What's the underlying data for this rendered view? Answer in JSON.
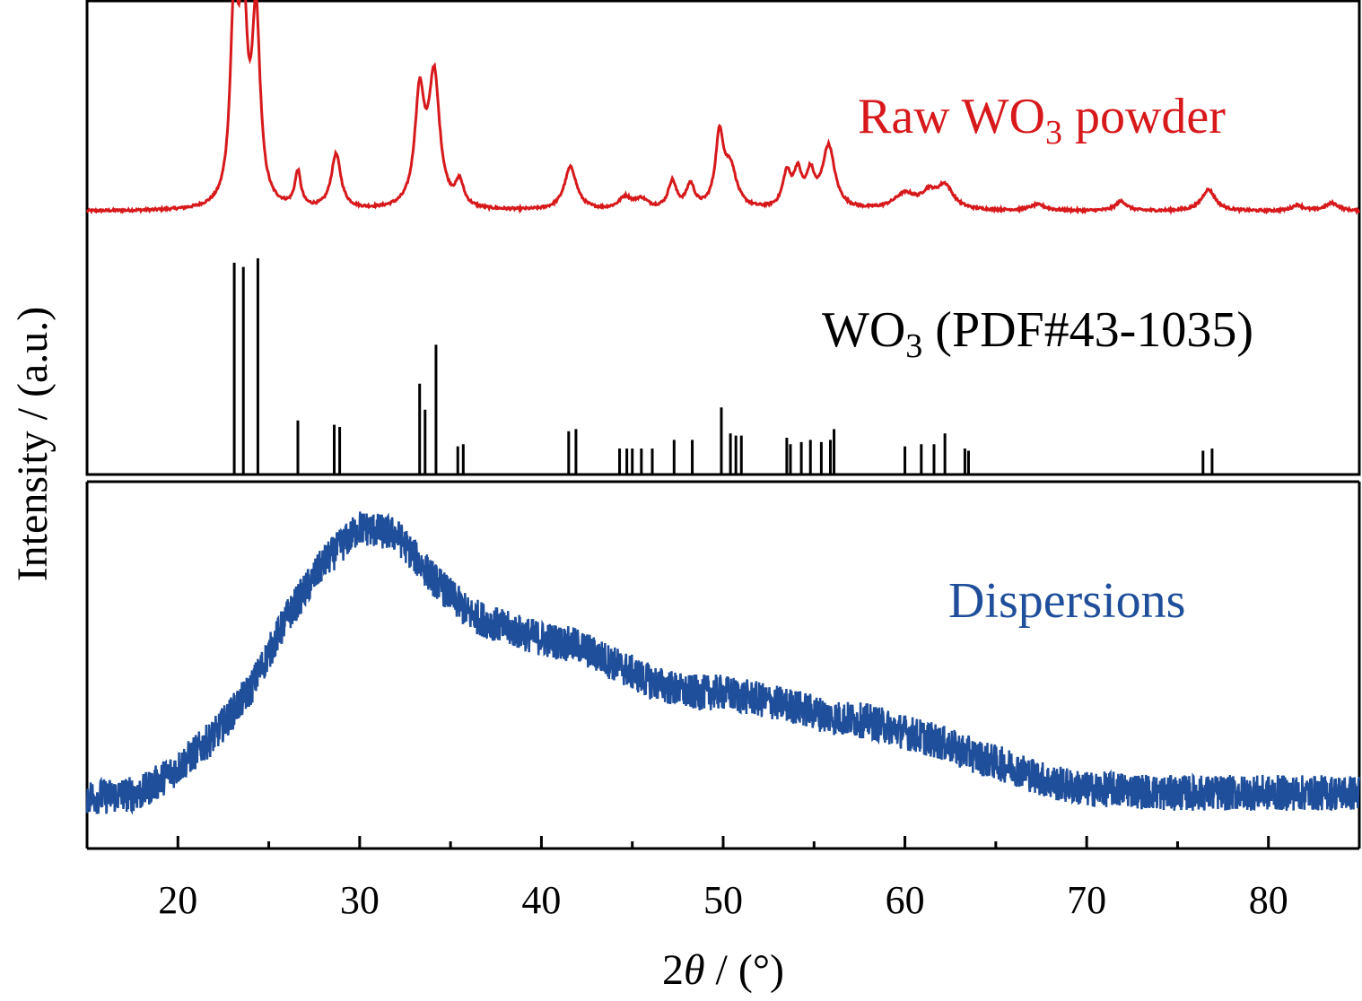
{
  "chart_data": {
    "type": "line",
    "xlabel": "2θ / (°)",
    "xlabel_parts": {
      "prefix": "2",
      "symbol": "θ",
      "suffix": " / (°)"
    },
    "ylabel": "Intensity / (a.u.)",
    "xlim": [
      15,
      85
    ],
    "xticks": [
      20,
      30,
      40,
      50,
      60,
      70,
      80
    ],
    "xticks_minor": [
      25,
      35,
      45,
      55,
      65,
      75
    ],
    "yticks": [],
    "legend": "none",
    "panels": [
      {
        "name": "Raw WO3 powder",
        "label": {
          "text": "Raw WO",
          "sub": "3",
          "rest": " powder"
        },
        "color": "#d7191c",
        "baseline": 0.02,
        "peaks": [
          {
            "x": 23.1,
            "h": 0.98,
            "w": 0.28
          },
          {
            "x": 23.6,
            "h": 0.94,
            "w": 0.28
          },
          {
            "x": 24.3,
            "h": 0.95,
            "w": 0.3
          },
          {
            "x": 26.6,
            "h": 0.18,
            "w": 0.22
          },
          {
            "x": 28.7,
            "h": 0.28,
            "w": 0.35
          },
          {
            "x": 33.3,
            "h": 0.56,
            "w": 0.35
          },
          {
            "x": 34.1,
            "h": 0.66,
            "w": 0.4
          },
          {
            "x": 35.5,
            "h": 0.12,
            "w": 0.3
          },
          {
            "x": 41.6,
            "h": 0.22,
            "w": 0.45
          },
          {
            "x": 44.6,
            "h": 0.06,
            "w": 0.45
          },
          {
            "x": 45.5,
            "h": 0.05,
            "w": 0.5
          },
          {
            "x": 47.2,
            "h": 0.14,
            "w": 0.3
          },
          {
            "x": 48.2,
            "h": 0.12,
            "w": 0.3
          },
          {
            "x": 49.8,
            "h": 0.36,
            "w": 0.3
          },
          {
            "x": 50.4,
            "h": 0.2,
            "w": 0.45
          },
          {
            "x": 53.5,
            "h": 0.17,
            "w": 0.3
          },
          {
            "x": 54.1,
            "h": 0.17,
            "w": 0.3
          },
          {
            "x": 54.8,
            "h": 0.16,
            "w": 0.3
          },
          {
            "x": 55.8,
            "h": 0.32,
            "w": 0.45
          },
          {
            "x": 60.0,
            "h": 0.08,
            "w": 0.8
          },
          {
            "x": 61.3,
            "h": 0.07,
            "w": 0.5
          },
          {
            "x": 62.2,
            "h": 0.12,
            "w": 0.6
          },
          {
            "x": 67.3,
            "h": 0.03,
            "w": 0.6
          },
          {
            "x": 71.9,
            "h": 0.05,
            "w": 0.4
          },
          {
            "x": 76.7,
            "h": 0.11,
            "w": 0.5
          },
          {
            "x": 81.6,
            "h": 0.03,
            "w": 0.4
          },
          {
            "x": 83.5,
            "h": 0.04,
            "w": 0.5
          }
        ]
      },
      {
        "name": "WO3 (PDF#43-1035)",
        "label": {
          "text": "WO",
          "sub": "3",
          "rest": " (PDF#43-1035)"
        },
        "color": "#000000",
        "type": "stick",
        "sticks": [
          {
            "x": 23.1,
            "h": 0.98
          },
          {
            "x": 23.6,
            "h": 0.96
          },
          {
            "x": 24.4,
            "h": 1.0
          },
          {
            "x": 26.6,
            "h": 0.25
          },
          {
            "x": 28.6,
            "h": 0.23
          },
          {
            "x": 28.9,
            "h": 0.22
          },
          {
            "x": 33.3,
            "h": 0.42
          },
          {
            "x": 33.6,
            "h": 0.3
          },
          {
            "x": 34.2,
            "h": 0.6
          },
          {
            "x": 35.4,
            "h": 0.13
          },
          {
            "x": 35.7,
            "h": 0.14
          },
          {
            "x": 41.5,
            "h": 0.2
          },
          {
            "x": 41.9,
            "h": 0.21
          },
          {
            "x": 44.3,
            "h": 0.12
          },
          {
            "x": 44.7,
            "h": 0.12
          },
          {
            "x": 45.0,
            "h": 0.12
          },
          {
            "x": 45.5,
            "h": 0.12
          },
          {
            "x": 46.1,
            "h": 0.12
          },
          {
            "x": 47.3,
            "h": 0.16
          },
          {
            "x": 48.3,
            "h": 0.16
          },
          {
            "x": 49.9,
            "h": 0.31
          },
          {
            "x": 50.4,
            "h": 0.19
          },
          {
            "x": 50.7,
            "h": 0.18
          },
          {
            "x": 51.0,
            "h": 0.18
          },
          {
            "x": 53.5,
            "h": 0.17
          },
          {
            "x": 53.7,
            "h": 0.14
          },
          {
            "x": 54.3,
            "h": 0.15
          },
          {
            "x": 54.8,
            "h": 0.16
          },
          {
            "x": 55.4,
            "h": 0.15
          },
          {
            "x": 55.9,
            "h": 0.16
          },
          {
            "x": 56.1,
            "h": 0.21
          },
          {
            "x": 60.0,
            "h": 0.13
          },
          {
            "x": 60.9,
            "h": 0.14
          },
          {
            "x": 61.6,
            "h": 0.14
          },
          {
            "x": 62.2,
            "h": 0.19
          },
          {
            "x": 63.3,
            "h": 0.12
          },
          {
            "x": 63.5,
            "h": 0.11
          },
          {
            "x": 76.4,
            "h": 0.11
          },
          {
            "x": 76.9,
            "h": 0.12
          }
        ]
      },
      {
        "name": "Dispersions",
        "label": {
          "text": "Dispersions",
          "sub": "",
          "rest": ""
        },
        "color": "#1f4e9a",
        "broad": [
          {
            "x": 16.0,
            "y": 0.13
          },
          {
            "x": 18.0,
            "y": 0.14
          },
          {
            "x": 20.0,
            "y": 0.21
          },
          {
            "x": 22.0,
            "y": 0.3
          },
          {
            "x": 24.0,
            "y": 0.43
          },
          {
            "x": 26.0,
            "y": 0.63
          },
          {
            "x": 28.0,
            "y": 0.78
          },
          {
            "x": 30.0,
            "y": 0.88
          },
          {
            "x": 32.0,
            "y": 0.86
          },
          {
            "x": 34.0,
            "y": 0.74
          },
          {
            "x": 36.0,
            "y": 0.64
          },
          {
            "x": 38.0,
            "y": 0.6
          },
          {
            "x": 40.0,
            "y": 0.57
          },
          {
            "x": 42.0,
            "y": 0.55
          },
          {
            "x": 44.0,
            "y": 0.5
          },
          {
            "x": 46.0,
            "y": 0.45
          },
          {
            "x": 48.0,
            "y": 0.42
          },
          {
            "x": 50.0,
            "y": 0.42
          },
          {
            "x": 52.0,
            "y": 0.4
          },
          {
            "x": 54.0,
            "y": 0.38
          },
          {
            "x": 56.0,
            "y": 0.35
          },
          {
            "x": 58.0,
            "y": 0.34
          },
          {
            "x": 60.0,
            "y": 0.31
          },
          {
            "x": 62.0,
            "y": 0.28
          },
          {
            "x": 64.0,
            "y": 0.24
          },
          {
            "x": 66.0,
            "y": 0.21
          },
          {
            "x": 68.0,
            "y": 0.17
          },
          {
            "x": 70.0,
            "y": 0.15
          },
          {
            "x": 72.0,
            "y": 0.15
          },
          {
            "x": 74.0,
            "y": 0.14
          },
          {
            "x": 76.0,
            "y": 0.14
          },
          {
            "x": 78.0,
            "y": 0.14
          },
          {
            "x": 80.0,
            "y": 0.14
          },
          {
            "x": 82.0,
            "y": 0.14
          },
          {
            "x": 85.0,
            "y": 0.14
          }
        ],
        "noise_amplitude": 0.05
      }
    ]
  }
}
